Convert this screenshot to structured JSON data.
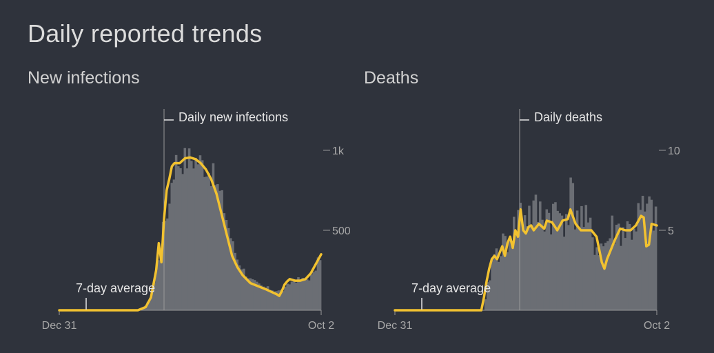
{
  "page": {
    "title": "Daily reported trends"
  },
  "colors": {
    "background": "#2f333c",
    "bars": "#6b6e74",
    "average_line": "#f2c230",
    "axis": "#9a9a9a",
    "annotation": "#e6e6e6"
  },
  "chart_data": [
    {
      "type": "bar",
      "title": "New infections",
      "x_range": [
        "Dec 31",
        "Oct 2"
      ],
      "x_tick_labels": [
        "Dec 31",
        "Oct 2"
      ],
      "ylim": [
        0,
        1250
      ],
      "y_ticks": [
        500,
        1000
      ],
      "y_tick_labels": [
        "500",
        "1k"
      ],
      "bar_series_label": "Daily new infections",
      "line_series_label": "7-day average",
      "bar_shape": [
        [
          0,
          0
        ],
        [
          30,
          0
        ],
        [
          33,
          30
        ],
        [
          35,
          80
        ],
        [
          37,
          230
        ],
        [
          39,
          450
        ],
        [
          40,
          550
        ],
        [
          42,
          650
        ],
        [
          43,
          850
        ],
        [
          44,
          900
        ],
        [
          45,
          950
        ],
        [
          46,
          920
        ],
        [
          47,
          940
        ],
        [
          50,
          950
        ],
        [
          53,
          940
        ],
        [
          56,
          900
        ],
        [
          59,
          830
        ],
        [
          62,
          700
        ],
        [
          64,
          560
        ],
        [
          66,
          420
        ],
        [
          68,
          320
        ],
        [
          70,
          260
        ],
        [
          73,
          190
        ],
        [
          77,
          150
        ],
        [
          81,
          130
        ],
        [
          84,
          120
        ],
        [
          86,
          130
        ],
        [
          88,
          170
        ],
        [
          90,
          190
        ],
        [
          94,
          190
        ],
        [
          97,
          220
        ],
        [
          100,
          360
        ]
      ],
      "average_line": [
        [
          0,
          0
        ],
        [
          30,
          0
        ],
        [
          33,
          20
        ],
        [
          35,
          80
        ],
        [
          37,
          250
        ],
        [
          38,
          420
        ],
        [
          39,
          300
        ],
        [
          40,
          570
        ],
        [
          41,
          750
        ],
        [
          42,
          820
        ],
        [
          43,
          900
        ],
        [
          44,
          920
        ],
        [
          46,
          920
        ],
        [
          48,
          950
        ],
        [
          50,
          955
        ],
        [
          52,
          945
        ],
        [
          54,
          920
        ],
        [
          56,
          880
        ],
        [
          58,
          820
        ],
        [
          60,
          730
        ],
        [
          62,
          600
        ],
        [
          64,
          470
        ],
        [
          66,
          340
        ],
        [
          68,
          270
        ],
        [
          70,
          220
        ],
        [
          73,
          170
        ],
        [
          76,
          150
        ],
        [
          79,
          130
        ],
        [
          81,
          115
        ],
        [
          83,
          100
        ],
        [
          84,
          90
        ],
        [
          85,
          120
        ],
        [
          86,
          160
        ],
        [
          87,
          180
        ],
        [
          88,
          195
        ],
        [
          90,
          185
        ],
        [
          92,
          185
        ],
        [
          94,
          195
        ],
        [
          96,
          230
        ],
        [
          98,
          290
        ],
        [
          100,
          350
        ]
      ]
    },
    {
      "type": "bar",
      "title": "Deaths",
      "x_range": [
        "Dec 31",
        "Oct 2"
      ],
      "x_tick_labels": [
        "Dec 31",
        "Oct 2"
      ],
      "ylim": [
        0,
        12.5
      ],
      "y_ticks": [
        5,
        10
      ],
      "y_tick_labels": [
        "5",
        "10"
      ],
      "bar_series_label": "Daily deaths",
      "line_series_label": "7-day average",
      "bar_shape": [
        [
          0,
          0
        ],
        [
          34,
          0
        ],
        [
          35,
          1
        ],
        [
          36,
          2
        ],
        [
          37,
          3
        ],
        [
          40,
          4
        ],
        [
          42,
          4
        ],
        [
          44,
          5
        ],
        [
          46,
          5
        ],
        [
          47,
          6
        ],
        [
          50,
          6
        ],
        [
          53,
          6
        ],
        [
          56,
          6
        ],
        [
          60,
          6
        ],
        [
          65,
          6
        ],
        [
          67,
          7
        ],
        [
          70,
          6
        ],
        [
          74,
          5
        ],
        [
          77,
          4
        ],
        [
          80,
          4
        ],
        [
          83,
          5
        ],
        [
          86,
          5
        ],
        [
          90,
          5
        ],
        [
          94,
          6
        ],
        [
          96,
          6
        ],
        [
          100,
          6
        ]
      ],
      "average_line": [
        [
          0,
          0
        ],
        [
          33,
          0
        ],
        [
          34,
          0.8
        ],
        [
          35,
          1.8
        ],
        [
          36,
          2.6
        ],
        [
          37,
          3.2
        ],
        [
          38,
          3.4
        ],
        [
          39,
          3.2
        ],
        [
          40,
          3.6
        ],
        [
          41,
          4.0
        ],
        [
          42,
          3.4
        ],
        [
          43,
          4.2
        ],
        [
          44,
          4.6
        ],
        [
          45,
          3.9
        ],
        [
          46,
          5.0
        ],
        [
          47,
          4.6
        ],
        [
          48,
          6.3
        ],
        [
          49,
          5.0
        ],
        [
          50,
          4.8
        ],
        [
          51,
          5.2
        ],
        [
          52,
          5.3
        ],
        [
          53,
          5.0
        ],
        [
          55,
          5.4
        ],
        [
          57,
          5.1
        ],
        [
          58,
          5.6
        ],
        [
          60,
          5.5
        ],
        [
          62,
          5.0
        ],
        [
          64,
          5.6
        ],
        [
          66,
          5.7
        ],
        [
          67,
          6.3
        ],
        [
          69,
          5.4
        ],
        [
          71,
          5.0
        ],
        [
          73,
          5.0
        ],
        [
          75,
          5.0
        ],
        [
          77,
          4.6
        ],
        [
          79,
          3.0
        ],
        [
          80,
          2.6
        ],
        [
          81,
          3.2
        ],
        [
          82,
          3.6
        ],
        [
          84,
          4.4
        ],
        [
          86,
          5.1
        ],
        [
          88,
          5.0
        ],
        [
          90,
          5.0
        ],
        [
          92,
          5.3
        ],
        [
          94,
          5.9
        ],
        [
          95,
          5.8
        ],
        [
          96,
          4.0
        ],
        [
          97,
          4.1
        ],
        [
          98,
          5.4
        ],
        [
          100,
          5.3
        ]
      ]
    }
  ]
}
